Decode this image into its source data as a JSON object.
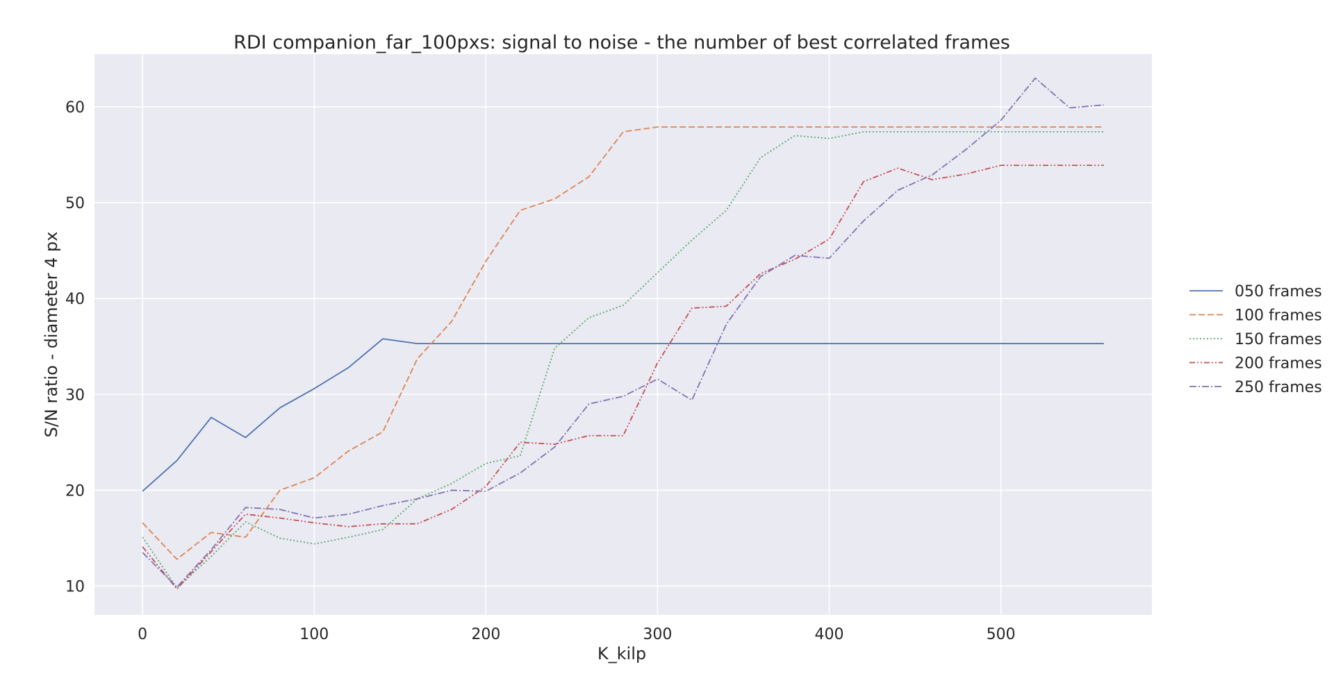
{
  "chart_data": {
    "type": "line",
    "title": "RDI companion_far_100pxs: signal to noise - the number of best correlated frames",
    "xlabel": "K_kilp",
    "ylabel": "S/N ratio - diameter 4 px",
    "xlim": [
      -28,
      588
    ],
    "ylim": [
      7,
      65.5
    ],
    "xticks": [
      0,
      100,
      200,
      300,
      400,
      500
    ],
    "yticks": [
      10,
      20,
      30,
      40,
      50,
      60
    ],
    "grid": true,
    "legend_position": "right",
    "background": "#eaeaf2",
    "x": [
      0,
      20,
      40,
      60,
      80,
      100,
      120,
      140,
      160,
      180,
      200,
      220,
      240,
      260,
      280,
      300,
      320,
      340,
      360,
      380,
      400,
      420,
      440,
      460,
      480,
      500,
      520,
      540,
      560
    ],
    "series": [
      {
        "name": "050 frames",
        "color": "#4c72b0",
        "dash": "solid",
        "values": [
          19.9,
          23.1,
          27.6,
          25.5,
          28.6,
          30.6,
          32.8,
          35.8,
          35.3,
          35.3,
          35.3,
          35.3,
          35.3,
          35.3,
          35.3,
          35.3,
          35.3,
          35.3,
          35.3,
          35.3,
          35.3,
          35.3,
          35.3,
          35.3,
          35.3,
          35.3,
          35.3,
          35.3,
          35.3
        ]
      },
      {
        "name": "100 frames",
        "color": "#dd8452",
        "dash": "dashed",
        "values": [
          16.6,
          12.8,
          15.6,
          15.1,
          20.0,
          21.3,
          24.1,
          26.1,
          33.7,
          37.6,
          43.9,
          49.2,
          50.4,
          52.7,
          57.4,
          57.9,
          57.9,
          57.9,
          57.9,
          57.9,
          57.9,
          57.9,
          57.9,
          57.9,
          57.9,
          57.9,
          57.9,
          57.9,
          57.9
        ]
      },
      {
        "name": "150 frames",
        "color": "#55a868",
        "dash": "dotted",
        "values": [
          15.1,
          9.8,
          13.1,
          16.7,
          15.0,
          14.4,
          15.1,
          15.9,
          19.1,
          20.7,
          22.8,
          23.6,
          34.8,
          38.0,
          39.3,
          42.7,
          46.1,
          49.2,
          54.7,
          57.0,
          56.7,
          57.4,
          57.4,
          57.4,
          57.4,
          57.4,
          57.4,
          57.4,
          57.4
        ]
      },
      {
        "name": "200 frames",
        "color": "#c44e52",
        "dash": "dashdotdot",
        "values": [
          14.1,
          9.7,
          13.6,
          17.5,
          17.1,
          16.6,
          16.2,
          16.5,
          16.5,
          18.0,
          20.4,
          25.0,
          24.8,
          25.7,
          25.7,
          33.3,
          39.0,
          39.2,
          42.6,
          44.1,
          46.2,
          52.2,
          53.6,
          52.4,
          53.0,
          53.9,
          53.9,
          53.9,
          53.9
        ]
      },
      {
        "name": "250 frames",
        "color": "#8172b3",
        "dash": "dashdot",
        "values": [
          13.5,
          9.9,
          13.8,
          18.2,
          18.0,
          17.1,
          17.5,
          18.4,
          19.1,
          20.0,
          19.9,
          21.8,
          24.5,
          29.0,
          29.8,
          31.6,
          29.4,
          37.3,
          42.3,
          44.5,
          44.2,
          48.1,
          51.3,
          52.9,
          55.6,
          58.6,
          63.0,
          59.9,
          60.2
        ]
      }
    ]
  }
}
